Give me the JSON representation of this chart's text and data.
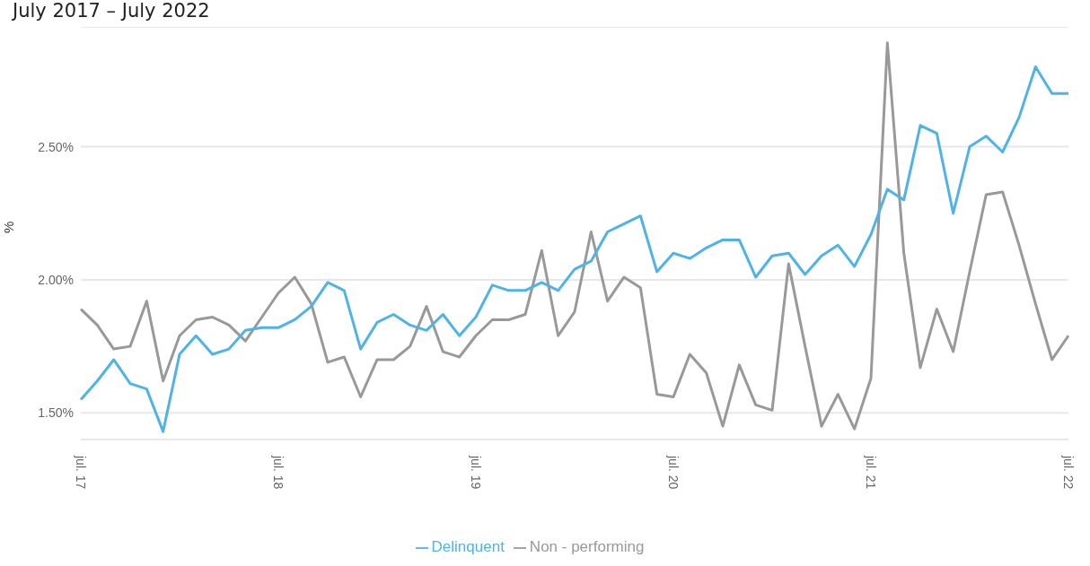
{
  "chart_data": {
    "type": "line",
    "title": "July 2017 – July 2022",
    "ylabel": "%",
    "categories": [
      "jul. 17",
      null,
      null,
      null,
      null,
      null,
      null,
      null,
      null,
      null,
      null,
      null,
      "jul. 18",
      null,
      null,
      null,
      null,
      null,
      null,
      null,
      null,
      null,
      null,
      null,
      "jul. 19",
      null,
      null,
      null,
      null,
      null,
      null,
      null,
      null,
      null,
      null,
      null,
      "jul. 20",
      null,
      null,
      null,
      null,
      null,
      null,
      null,
      null,
      null,
      null,
      null,
      "jul. 21",
      null,
      null,
      null,
      null,
      null,
      null,
      null,
      null,
      null,
      null,
      null,
      "jul. 22"
    ],
    "series": [
      {
        "name": "Non - performing",
        "color": "#999999",
        "values": [
          1.89,
          1.83,
          1.74,
          1.75,
          1.92,
          1.62,
          1.79,
          1.85,
          1.86,
          1.83,
          1.77,
          1.86,
          1.95,
          2.01,
          1.91,
          1.69,
          1.71,
          1.56,
          1.7,
          1.7,
          1.75,
          1.9,
          1.73,
          1.71,
          1.79,
          1.85,
          1.85,
          1.87,
          2.11,
          1.79,
          1.88,
          2.18,
          1.92,
          2.01,
          1.97,
          1.57,
          1.56,
          1.72,
          1.65,
          1.45,
          1.68,
          1.53,
          1.51,
          2.06,
          1.75,
          1.45,
          1.57,
          1.44,
          1.63,
          2.89,
          2.1,
          1.67,
          1.89,
          1.73,
          2.03,
          2.32,
          2.33,
          2.13,
          1.91,
          1.7,
          1.79
        ]
      },
      {
        "name": "Delinquent",
        "color": "#4fb3e8",
        "values": [
          1.55,
          1.62,
          1.7,
          1.61,
          1.59,
          1.43,
          1.72,
          1.79,
          1.72,
          1.74,
          1.81,
          1.82,
          1.82,
          1.85,
          1.9,
          1.99,
          1.96,
          1.74,
          1.84,
          1.87,
          1.83,
          1.81,
          1.87,
          1.79,
          1.86,
          1.98,
          1.96,
          1.96,
          1.99,
          1.96,
          2.04,
          2.07,
          2.18,
          2.21,
          2.24,
          2.03,
          2.1,
          2.08,
          2.12,
          2.15,
          2.15,
          2.01,
          2.09,
          2.1,
          2.02,
          2.09,
          2.13,
          2.05,
          2.17,
          2.34,
          2.3,
          2.58,
          2.55,
          2.25,
          2.5,
          2.54,
          2.48,
          2.61,
          2.8,
          2.7,
          2.7
        ]
      }
    ],
    "ylim": [
      1.4,
      2.95
    ],
    "yticks": [
      {
        "value": 1.5,
        "label": "1.50%"
      },
      {
        "value": 2.0,
        "label": "2.00%"
      },
      {
        "value": 2.5,
        "label": "2.50%"
      }
    ],
    "grid": "y",
    "legend": "bottom",
    "marker": "none",
    "line_style": "solid"
  }
}
